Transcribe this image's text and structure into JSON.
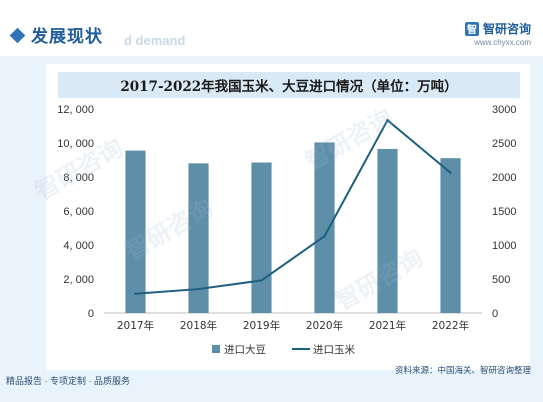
{
  "header": {
    "title": "发展现状",
    "watermark": "d demand",
    "brand_name": "智研咨询",
    "brand_url": "www.chyxx.com"
  },
  "footer": {
    "left": "精品报告 · 专项定制 · 品质服务",
    "right": "资料来源：中国海关、智研咨询整理"
  },
  "watermarks": [
    "智研咨询",
    "智研咨询",
    "智研咨询",
    "智研咨询"
  ],
  "chart_data": {
    "type": "bar",
    "title": "2017-2022年我国玉米、大豆进口情况（单位：万吨）",
    "categories": [
      "2017年",
      "2018年",
      "2019年",
      "2020年",
      "2021年",
      "2022年"
    ],
    "series": [
      {
        "name": "进口大豆",
        "type": "bar",
        "axis": "left",
        "values": [
          9553,
          8803,
          8851,
          10032,
          9652,
          9108
        ]
      },
      {
        "name": "进口玉米",
        "type": "line",
        "axis": "right",
        "values": [
          283,
          352,
          479,
          1130,
          2835,
          2062
        ]
      }
    ],
    "y_left": {
      "range": [
        0,
        12000
      ],
      "ticks": [
        "0",
        "2, 000",
        "4, 000",
        "6, 000",
        "8, 000",
        "10, 000",
        "12, 000"
      ]
    },
    "y_right": {
      "range": [
        0,
        3000
      ],
      "ticks": [
        "0",
        "500",
        "1000",
        "1500",
        "2000",
        "2500",
        "3000"
      ]
    },
    "legend_position": "bottom",
    "colors": {
      "bar": "#5e8fa8",
      "line": "#1e5f80"
    }
  }
}
